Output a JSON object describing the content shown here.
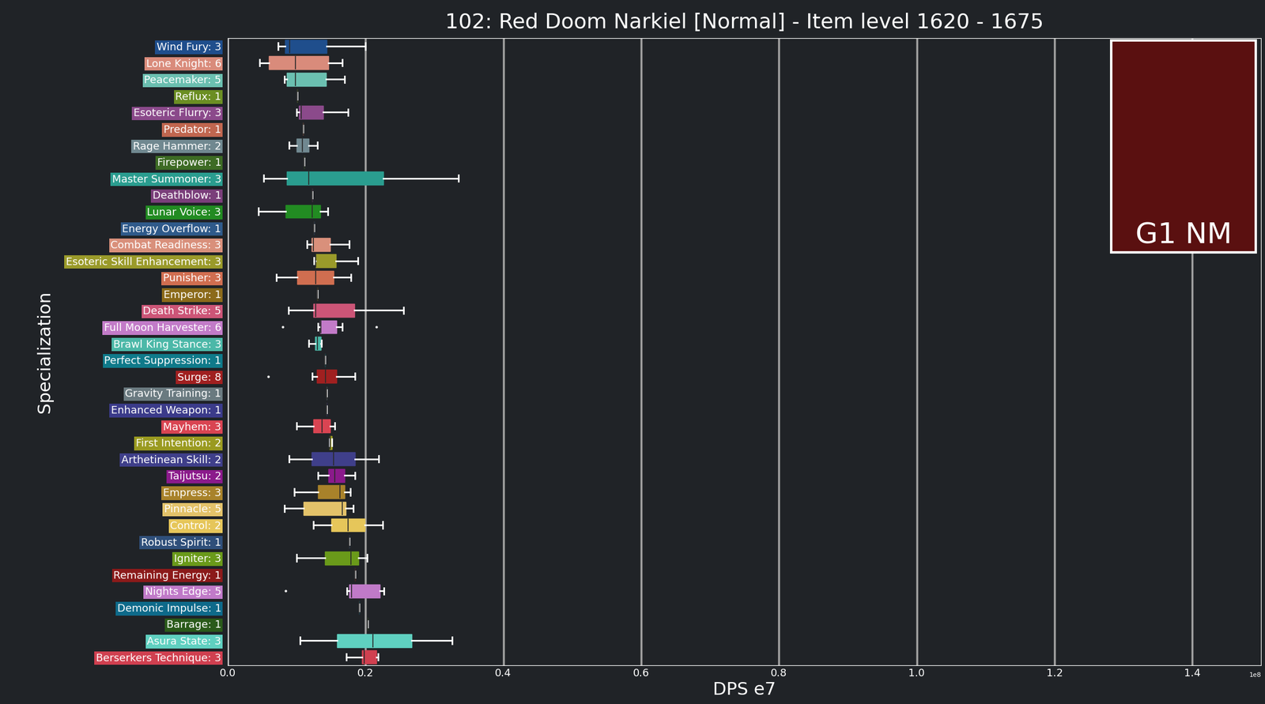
{
  "chart_data": {
    "type": "box",
    "orientation": "horizontal",
    "grid": true,
    "title": "102: Red Doom Narkiel [Normal] - Item level 1620 - 1675",
    "x_label": "DPS e7",
    "y_label": "Specialization",
    "annotations": [
      {
        "text": "1e8"
      },
      {
        "text": "G1 NM"
      }
    ],
    "xlim": [
      0,
      1.5
    ],
    "xticks": [
      0.0,
      0.2,
      0.4,
      0.6,
      0.8,
      1.0,
      1.2,
      1.4
    ],
    "categories": [
      "Wind Fury: 3",
      "Lone Knight: 6",
      "Peacemaker: 5",
      "Reflux: 1",
      "Esoteric Flurry: 3",
      "Predator: 1",
      "Rage Hammer: 2",
      "Firepower: 1",
      "Master Summoner: 3",
      "Deathblow: 1",
      "Lunar Voice: 3",
      "Energy Overflow: 1",
      "Combat Readiness: 3",
      "Esoteric Skill Enhancement: 3",
      "Punisher: 3",
      "Emperor: 1",
      "Death Strike: 5",
      "Full Moon Harvester: 6",
      "Brawl King Stance: 3",
      "Perfect Suppression: 1",
      "Surge: 8",
      "Gravity Training: 1",
      "Enhanced Weapon: 1",
      "Mayhem: 3",
      "First Intention: 2",
      "Arthetinean Skill: 2",
      "Taijutsu: 2",
      "Empress: 3",
      "Pinnacle: 5",
      "Control: 2",
      "Robust Spirit: 1",
      "Igniter: 3",
      "Remaining Energy: 1",
      "Nights Edge: 5",
      "Demonic Impulse: 1",
      "Barrage: 1",
      "Asura State: 3",
      "Berserkers Technique: 3"
    ],
    "colors": [
      "#1f4e8c",
      "#d98b7b",
      "#6bbfb0",
      "#6b8e23",
      "#8b4a8b",
      "#c0664f",
      "#708890",
      "#3d6b24",
      "#2a9d8f",
      "#7a3e7a",
      "#228b22",
      "#2f5a8a",
      "#d9907b",
      "#9a9a2a",
      "#d06e50",
      "#8b6a1a",
      "#cc5577",
      "#c27bc8",
      "#4cb8a8",
      "#0f7a8a",
      "#a02020",
      "#6a7a80",
      "#3b3b8a",
      "#d94452",
      "#9a9a20",
      "#3f3f8a",
      "#8b1a8b",
      "#a8822a",
      "#e3c26a",
      "#e6c65a",
      "#2f4f7a",
      "#6a9a1a",
      "#8b1a1a",
      "#c07ac8",
      "#0e6a8a",
      "#2a5a1a",
      "#5fd0c0",
      "#d04050"
    ],
    "boxes": [
      {
        "whislo": 0.073,
        "q1": 0.083,
        "med": 0.09,
        "q3": 0.144,
        "whishi": 0.2,
        "fliers": []
      },
      {
        "whislo": 0.046,
        "q1": 0.06,
        "med": 0.098,
        "q3": 0.146,
        "whishi": 0.166,
        "fliers": []
      },
      {
        "whislo": 0.082,
        "q1": 0.086,
        "med": 0.098,
        "q3": 0.143,
        "whishi": 0.17,
        "fliers": []
      },
      {
        "whislo": 0.101,
        "q1": 0.101,
        "med": 0.101,
        "q3": 0.101,
        "whishi": 0.101,
        "fliers": []
      },
      {
        "whislo": 0.1,
        "q1": 0.103,
        "med": 0.107,
        "q3": 0.139,
        "whishi": 0.175,
        "fliers": []
      },
      {
        "whislo": 0.109,
        "q1": 0.109,
        "med": 0.109,
        "q3": 0.109,
        "whishi": 0.109,
        "fliers": []
      },
      {
        "whislo": 0.089,
        "q1": 0.1,
        "med": 0.108,
        "q3": 0.118,
        "whishi": 0.13,
        "fliers": []
      },
      {
        "whislo": 0.111,
        "q1": 0.111,
        "med": 0.111,
        "q3": 0.111,
        "whishi": 0.111,
        "fliers": []
      },
      {
        "whislo": 0.052,
        "q1": 0.086,
        "med": 0.118,
        "q3": 0.226,
        "whishi": 0.335,
        "fliers": []
      },
      {
        "whislo": 0.123,
        "q1": 0.123,
        "med": 0.123,
        "q3": 0.123,
        "whishi": 0.123,
        "fliers": []
      },
      {
        "whislo": 0.045,
        "q1": 0.084,
        "med": 0.123,
        "q3": 0.134,
        "whishi": 0.145,
        "fliers": []
      },
      {
        "whislo": 0.125,
        "q1": 0.125,
        "med": 0.125,
        "q3": 0.125,
        "whishi": 0.125,
        "fliers": []
      },
      {
        "whislo": 0.115,
        "q1": 0.122,
        "med": 0.124,
        "q3": 0.149,
        "whishi": 0.176,
        "fliers": []
      },
      {
        "whislo": 0.125,
        "q1": 0.128,
        "med": 0.128,
        "q3": 0.157,
        "whishi": 0.189,
        "fliers": []
      },
      {
        "whislo": 0.071,
        "q1": 0.101,
        "med": 0.128,
        "q3": 0.154,
        "whishi": 0.179,
        "fliers": []
      },
      {
        "whislo": 0.13,
        "q1": 0.13,
        "med": 0.13,
        "q3": 0.13,
        "whishi": 0.13,
        "fliers": []
      },
      {
        "whislo": 0.088,
        "q1": 0.124,
        "med": 0.128,
        "q3": 0.184,
        "whishi": 0.255,
        "fliers": []
      },
      {
        "whislo": 0.131,
        "q1": 0.134,
        "med": 0.135,
        "q3": 0.158,
        "whishi": 0.166,
        "fliers": [
          0.08,
          0.216
        ]
      },
      {
        "whislo": 0.118,
        "q1": 0.127,
        "med": 0.13,
        "q3": 0.135,
        "whishi": 0.136,
        "fliers": []
      },
      {
        "whislo": 0.141,
        "q1": 0.141,
        "med": 0.141,
        "q3": 0.141,
        "whishi": 0.141,
        "fliers": []
      },
      {
        "whislo": 0.123,
        "q1": 0.129,
        "med": 0.142,
        "q3": 0.158,
        "whishi": 0.185,
        "fliers": [
          0.059
        ]
      },
      {
        "whislo": 0.144,
        "q1": 0.144,
        "med": 0.144,
        "q3": 0.144,
        "whishi": 0.144,
        "fliers": []
      },
      {
        "whislo": 0.144,
        "q1": 0.144,
        "med": 0.144,
        "q3": 0.144,
        "whishi": 0.144,
        "fliers": []
      },
      {
        "whislo": 0.1,
        "q1": 0.124,
        "med": 0.137,
        "q3": 0.149,
        "whishi": 0.155,
        "fliers": []
      },
      {
        "whislo": 0.148,
        "q1": 0.148,
        "med": 0.149,
        "q3": 0.151,
        "whishi": 0.151,
        "fliers": []
      },
      {
        "whislo": 0.089,
        "q1": 0.122,
        "med": 0.154,
        "q3": 0.185,
        "whishi": 0.219,
        "fliers": []
      },
      {
        "whislo": 0.131,
        "q1": 0.146,
        "med": 0.155,
        "q3": 0.17,
        "whishi": 0.185,
        "fliers": []
      },
      {
        "whislo": 0.097,
        "q1": 0.131,
        "med": 0.163,
        "q3": 0.17,
        "whishi": 0.178,
        "fliers": []
      },
      {
        "whislo": 0.082,
        "q1": 0.11,
        "med": 0.166,
        "q3": 0.171,
        "whishi": 0.182,
        "fliers": []
      },
      {
        "whislo": 0.124,
        "q1": 0.15,
        "med": 0.175,
        "q3": 0.199,
        "whishi": 0.225,
        "fliers": []
      },
      {
        "whislo": 0.176,
        "q1": 0.176,
        "med": 0.176,
        "q3": 0.176,
        "whishi": 0.176,
        "fliers": []
      },
      {
        "whislo": 0.1,
        "q1": 0.141,
        "med": 0.179,
        "q3": 0.19,
        "whishi": 0.202,
        "fliers": []
      },
      {
        "whislo": 0.185,
        "q1": 0.185,
        "med": 0.185,
        "q3": 0.185,
        "whishi": 0.185,
        "fliers": []
      },
      {
        "whislo": 0.173,
        "q1": 0.176,
        "med": 0.18,
        "q3": 0.221,
        "whishi": 0.227,
        "fliers": [
          0.084
        ]
      },
      {
        "whislo": 0.191,
        "q1": 0.191,
        "med": 0.191,
        "q3": 0.191,
        "whishi": 0.191,
        "fliers": []
      },
      {
        "whislo": 0.203,
        "q1": 0.203,
        "med": 0.203,
        "q3": 0.203,
        "whishi": 0.203,
        "fliers": []
      },
      {
        "whislo": 0.105,
        "q1": 0.159,
        "med": 0.211,
        "q3": 0.267,
        "whishi": 0.326,
        "fliers": []
      },
      {
        "whislo": 0.172,
        "q1": 0.195,
        "med": 0.198,
        "q3": 0.216,
        "whishi": 0.218,
        "fliers": []
      }
    ]
  }
}
